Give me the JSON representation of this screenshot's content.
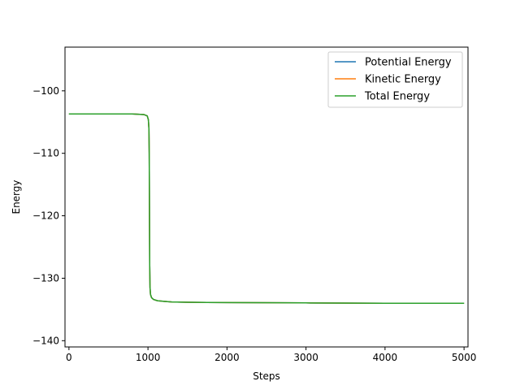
{
  "chart_data": {
    "type": "line",
    "title": "",
    "xlabel": "Steps",
    "ylabel": "Energy",
    "xlim": [
      -50,
      5050
    ],
    "ylim": [
      -141,
      -93
    ],
    "xticks": [
      0,
      1000,
      2000,
      3000,
      4000,
      5000
    ],
    "xtick_labels": [
      "0",
      "1000",
      "2000",
      "3000",
      "4000",
      "5000"
    ],
    "yticks": [
      -100,
      -110,
      -120,
      -130,
      -140
    ],
    "ytick_labels": [
      "−100",
      "−110",
      "−120",
      "−130",
      "−140"
    ],
    "grid": false,
    "legend_position": "top-right",
    "series": [
      {
        "name": "Potential Energy",
        "color": "#1f77b4",
        "x": [
          0,
          200,
          400,
          600,
          800,
          950,
          990,
          1005,
          1012,
          1016,
          1018,
          1020,
          1022,
          1026,
          1032,
          1045,
          1070,
          1120,
          1200,
          1300,
          1500,
          2000,
          3000,
          4000,
          5000
        ],
        "y": [
          -103.7,
          -103.7,
          -103.7,
          -103.7,
          -103.7,
          -103.8,
          -104.0,
          -104.6,
          -106.0,
          -110.0,
          -116.0,
          -122.0,
          -128.0,
          -131.5,
          -132.6,
          -133.1,
          -133.4,
          -133.6,
          -133.7,
          -133.8,
          -133.85,
          -133.9,
          -133.95,
          -134.0,
          -134.0
        ]
      },
      {
        "name": "Kinetic Energy",
        "color": "#ff7f0e",
        "x": [
          0,
          200,
          400,
          600,
          800,
          950,
          990,
          1005,
          1012,
          1016,
          1018,
          1020,
          1022,
          1026,
          1032,
          1045,
          1070,
          1120,
          1200,
          1300,
          1500,
          2000,
          3000,
          4000,
          5000
        ],
        "y": [
          -103.7,
          -103.7,
          -103.7,
          -103.7,
          -103.7,
          -103.8,
          -104.0,
          -104.6,
          -106.0,
          -110.0,
          -116.0,
          -122.0,
          -128.0,
          -131.5,
          -132.6,
          -133.1,
          -133.4,
          -133.6,
          -133.7,
          -133.8,
          -133.85,
          -133.9,
          -133.95,
          -134.0,
          -134.0
        ]
      },
      {
        "name": "Total Energy",
        "color": "#2ca02c",
        "x": [
          0,
          200,
          400,
          600,
          800,
          950,
          990,
          1005,
          1012,
          1016,
          1018,
          1020,
          1022,
          1026,
          1032,
          1045,
          1070,
          1120,
          1200,
          1300,
          1500,
          2000,
          3000,
          4000,
          5000
        ],
        "y": [
          -103.7,
          -103.7,
          -103.7,
          -103.7,
          -103.7,
          -103.8,
          -104.0,
          -104.6,
          -106.0,
          -110.0,
          -116.0,
          -122.0,
          -128.0,
          -131.5,
          -132.6,
          -133.1,
          -133.4,
          -133.6,
          -133.7,
          -133.8,
          -133.85,
          -133.9,
          -133.95,
          -134.0,
          -134.0
        ]
      }
    ]
  }
}
